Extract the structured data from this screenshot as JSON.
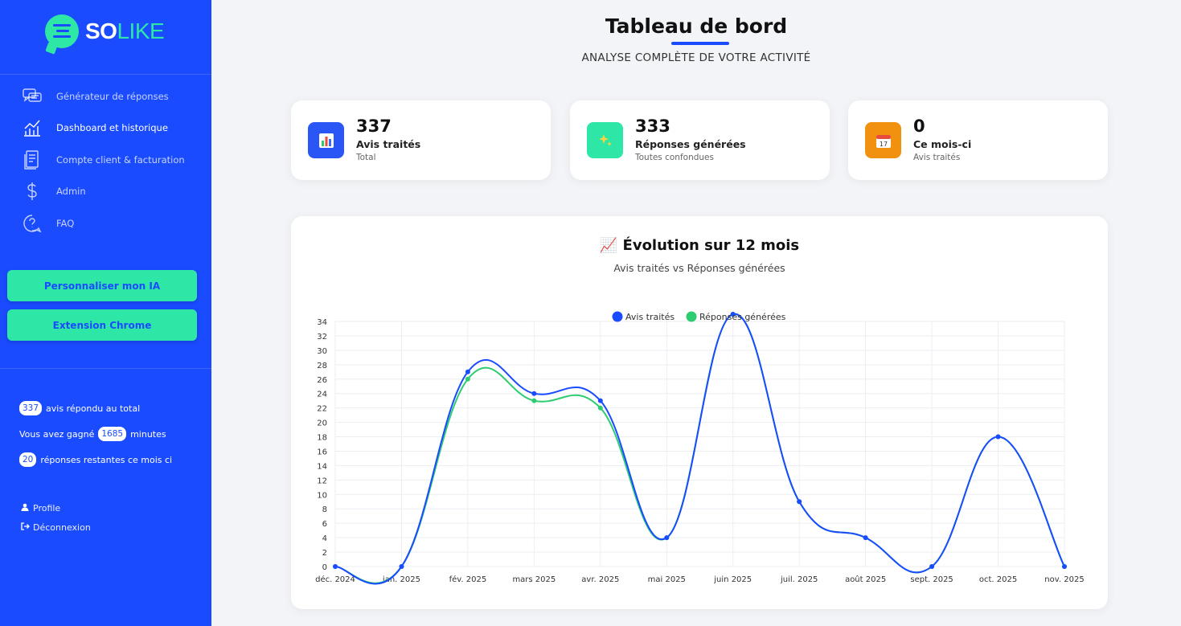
{
  "sidebar": {
    "logo": {
      "part1": "SO",
      "part2": "LIKE"
    },
    "nav": [
      {
        "label": "Générateur de réponses",
        "icon": "chat-bubbles-icon"
      },
      {
        "label": "Dashboard et historique",
        "icon": "line-chart-icon"
      },
      {
        "label": "Compte client & facturation",
        "icon": "receipt-icon"
      },
      {
        "label": "Admin",
        "icon": "dollar-icon"
      },
      {
        "label": "FAQ",
        "icon": "question-icon"
      }
    ],
    "cta": {
      "customize": "Personnaliser mon IA",
      "extension": "Extension Chrome"
    },
    "stats": {
      "total_count": "337",
      "total_text": "avis répondu au total",
      "gained_pre": "Vous avez gagné",
      "gained_count": "1685",
      "gained_text": "minutes",
      "remaining_count": "20",
      "remaining_text": "réponses restantes ce mois ci"
    },
    "links": {
      "profile": "Profile",
      "logout": "Déconnexion"
    }
  },
  "header": {
    "title": "Tableau de bord",
    "subtitle": "ANALYSE COMPLÈTE DE VOTRE ACTIVITÉ"
  },
  "cards": [
    {
      "value": "337",
      "label": "Avis traités",
      "sub": "Total",
      "icon": "bar-chart-icon",
      "color": "#2a56f5"
    },
    {
      "value": "333",
      "label": "Réponses générées",
      "sub": "Toutes confondues",
      "icon": "sparkles-icon",
      "color": "#2ee6a6"
    },
    {
      "value": "0",
      "label": "Ce mois-ci",
      "sub": "Avis traités",
      "icon": "calendar-icon",
      "color": "#f0920f"
    }
  ],
  "chart": {
    "title": "📈 Évolution sur 12 mois",
    "subtitle": "Avis traités vs Réponses générées"
  },
  "chart_data": {
    "type": "line",
    "x": [
      "déc. 2024",
      "janv. 2025",
      "févr. 2025",
      "mars 2025",
      "avr. 2025",
      "mai 2025",
      "juin 2025",
      "juil. 2025",
      "août 2025",
      "sept. 2025",
      "oct. 2025",
      "nov. 2025"
    ],
    "x_tick_labels": [
      "déc. 2024",
      "jan. 2025",
      "fév. 2025",
      "mars 2025",
      "avr. 2025",
      "mai 2025",
      "juin 2025",
      "juil. 2025",
      "août 2025",
      "sept. 2025",
      "oct. 2025",
      "nov. 2025"
    ],
    "series": [
      {
        "name": "Avis traités",
        "color": "#1a4bff",
        "values": [
          0,
          0,
          27,
          24,
          23,
          4,
          35,
          9,
          4,
          0,
          18,
          0
        ]
      },
      {
        "name": "Réponses générées",
        "color": "#2ecc71",
        "values": [
          0,
          0,
          26,
          23,
          22,
          4,
          35,
          9,
          4,
          0,
          18,
          0
        ]
      }
    ],
    "ylim": [
      0,
      34
    ],
    "ytick_step": 2,
    "grid": true,
    "legend": "top-center"
  }
}
